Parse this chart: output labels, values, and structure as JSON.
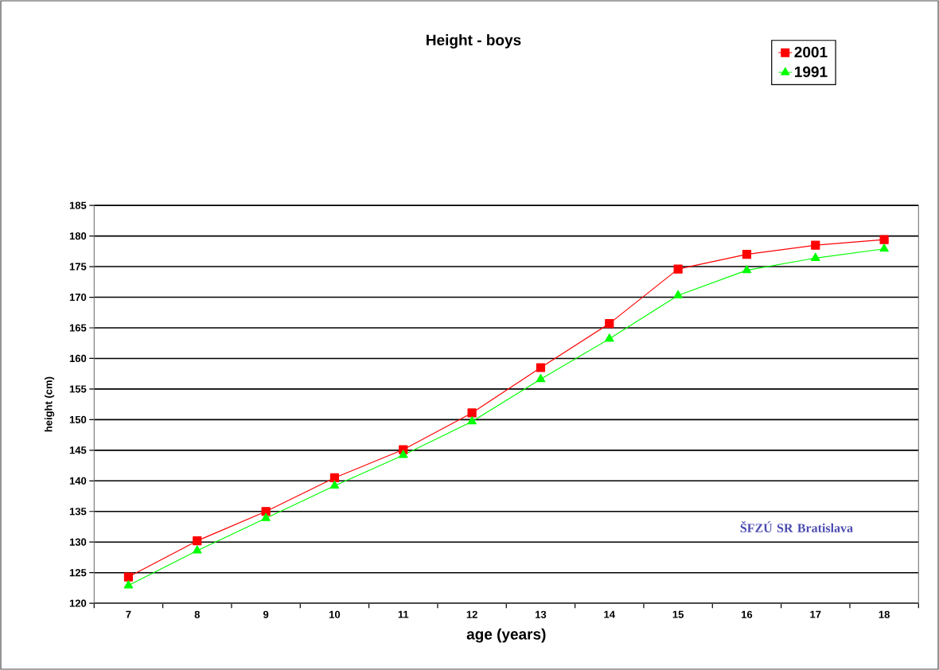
{
  "chart_data": {
    "type": "line",
    "title": "Height - boys",
    "xlabel": "age (years)",
    "ylabel": "height (cm)",
    "categories": [
      "7",
      "8",
      "9",
      "10",
      "11",
      "12",
      "13",
      "14",
      "15",
      "16",
      "17",
      "18"
    ],
    "series": [
      {
        "name": "2001",
        "color": "#ff0000",
        "marker": "square",
        "values": [
          124.3,
          130.2,
          135.0,
          140.5,
          145.1,
          151.1,
          158.5,
          165.7,
          174.6,
          177.0,
          178.5,
          179.4
        ]
      },
      {
        "name": "1991",
        "color": "#00ff00",
        "marker": "triangle",
        "values": [
          122.9,
          128.6,
          133.9,
          139.2,
          144.2,
          149.7,
          156.6,
          163.2,
          170.3,
          174.4,
          176.4,
          177.9
        ]
      }
    ],
    "ylim": [
      120,
      185
    ],
    "yticks": [
      120,
      125,
      130,
      135,
      140,
      145,
      150,
      155,
      160,
      165,
      170,
      175,
      180,
      185
    ],
    "grid": "y",
    "legend": "top right",
    "line_style": "solid",
    "annotations": [
      "ŠFZÚ SR Bratislava"
    ]
  }
}
